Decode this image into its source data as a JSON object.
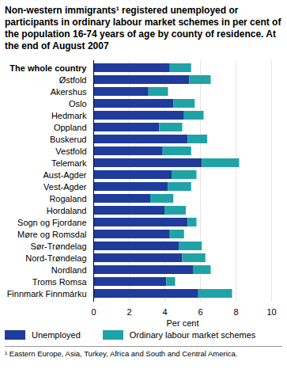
{
  "chart_data": {
    "type": "bar",
    "orientation": "horizontal",
    "stacked": true,
    "grid": true,
    "title": "Non-western immigrants¹ registered unemployed or participants in ordinary labour market schemes in per cent of the population 16-74 years of age by county of residence. At the end of August 2007",
    "x_label": "Per cent",
    "footnote": "¹ Eastern Europe, Asia, Turkey, Africa and South and Central America.",
    "categories": [
      "The whole country",
      "Østfold",
      "Akershus",
      "Oslo",
      "Hedmark",
      "Oppland",
      "Buskerud",
      "Vestfold",
      "Telemark",
      "Aust-Agder",
      "Vest-Agder",
      "Rogaland",
      "Hordaland",
      "Sogn og Fjordane",
      "Møre og Romsdal",
      "Sør-Trøndelag",
      "Nord-Trøndelag",
      "Nordland",
      "Troms Romsa",
      "Finnmark Finnmárku"
    ],
    "series": [
      {
        "name": "Unemployed",
        "color": "#1f3c9c",
        "values": [
          4.3,
          5.4,
          3.1,
          4.5,
          5.1,
          3.7,
          5.3,
          3.9,
          6.1,
          4.4,
          4.2,
          3.2,
          4.0,
          5.3,
          4.3,
          4.8,
          5.0,
          5.6,
          4.1,
          5.9
        ]
      },
      {
        "name": "Ordinary labour market schemes",
        "color": "#20a3a6",
        "values": [
          1.2,
          1.2,
          1.1,
          1.2,
          1.1,
          1.3,
          1.1,
          1.6,
          2.1,
          1.4,
          1.3,
          1.3,
          1.2,
          0.5,
          0.8,
          1.3,
          1.3,
          1.0,
          0.5,
          1.9
        ]
      }
    ],
    "xlim": [
      0,
      10
    ],
    "xticks": [
      0,
      2,
      4,
      6,
      8,
      10
    ],
    "legend": "bottom"
  }
}
